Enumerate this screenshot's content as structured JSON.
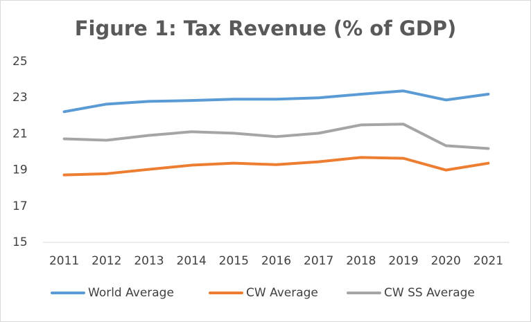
{
  "chart_data": {
    "type": "line",
    "title": "Figure 1: Tax Revenue (% of GDP)",
    "categories": [
      "2011",
      "2012",
      "2013",
      "2014",
      "2015",
      "2016",
      "2017",
      "2018",
      "2019",
      "2020",
      "2021"
    ],
    "series": [
      {
        "name": "World Average",
        "color": "#5b9bd5",
        "values": [
          22.23,
          22.65,
          22.8,
          22.85,
          22.92,
          22.92,
          23.0,
          23.2,
          23.38,
          22.88,
          23.2
        ]
      },
      {
        "name": "CW Average",
        "color": "#ed7d31",
        "values": [
          18.73,
          18.8,
          19.04,
          19.27,
          19.38,
          19.3,
          19.46,
          19.7,
          19.65,
          19.0,
          19.38
        ]
      },
      {
        "name": "CW SS Average",
        "color": "#a5a5a5",
        "values": [
          20.73,
          20.65,
          20.92,
          21.12,
          21.04,
          20.85,
          21.04,
          21.5,
          21.54,
          20.35,
          20.19
        ]
      }
    ],
    "ylim": [
      15,
      25
    ],
    "yticks": [
      15,
      17,
      19,
      21,
      23,
      25
    ],
    "grid": false,
    "legend_position": "bottom"
  }
}
